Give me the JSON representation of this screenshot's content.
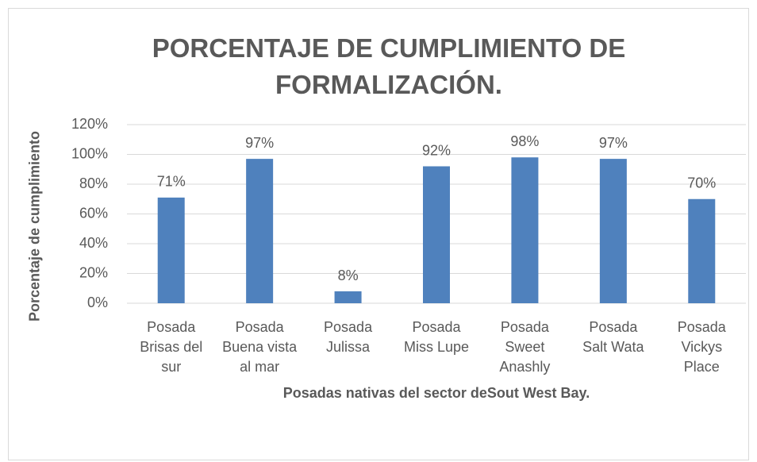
{
  "chart_data": {
    "type": "bar",
    "title": "PORCENTAJE DE CUMPLIMIENTO DE FORMALIZACIÓN.",
    "x_label": "Posadas nativas del sector deSout West Bay.",
    "y_label": "Porcentaje de cumplimiento",
    "categories": [
      "Posada Brisas del sur",
      "Posada Buena vista al mar",
      "Posada Julissa",
      "Posada Miss Lupe",
      "Posada Sweet Anashly",
      "Posada Salt Wata",
      "Posada Vickys Place"
    ],
    "values": [
      71,
      97,
      8,
      92,
      98,
      97,
      70
    ],
    "value_labels": [
      "71%",
      "97%",
      "8%",
      "92%",
      "98%",
      "97%",
      "70%"
    ],
    "color": "#4f81bd",
    "ylim": [
      0,
      120
    ],
    "yticks": [
      {
        "value": 0,
        "label": "0%"
      },
      {
        "value": 20,
        "label": "20%"
      },
      {
        "value": 40,
        "label": "40%"
      },
      {
        "value": 60,
        "label": "60%"
      },
      {
        "value": 80,
        "label": "80%"
      },
      {
        "value": 100,
        "label": "100%"
      },
      {
        "value": 120,
        "label": "120%"
      }
    ],
    "grid": true
  }
}
